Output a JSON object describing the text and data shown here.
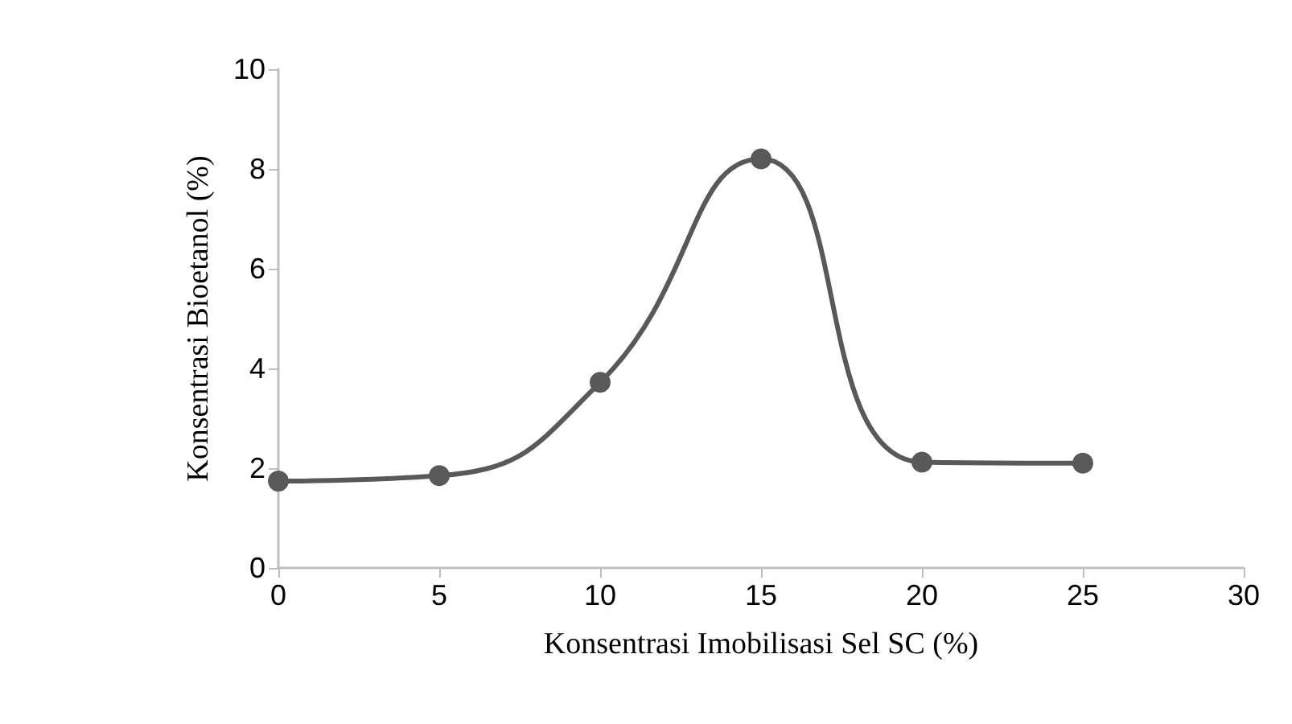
{
  "chart_data": {
    "type": "line",
    "xlabel": "Konsentrasi Imobilisasi Sel SC (%)",
    "ylabel": "Konsentrasi Bioetanol (%)",
    "x": [
      0,
      5,
      10,
      15,
      20,
      25
    ],
    "series": [
      {
        "color": "#595959",
        "values": [
          1.74,
          1.85,
          3.72,
          8.2,
          2.12,
          2.1
        ]
      }
    ],
    "xlim": [
      0,
      30
    ],
    "xticks": [
      0,
      5,
      10,
      15,
      20,
      25,
      30
    ],
    "ylim": [
      0,
      10
    ],
    "yticks": [
      0,
      2,
      4,
      6,
      8,
      10
    ],
    "grid": false,
    "marker": "circle",
    "line_style": "solid"
  }
}
